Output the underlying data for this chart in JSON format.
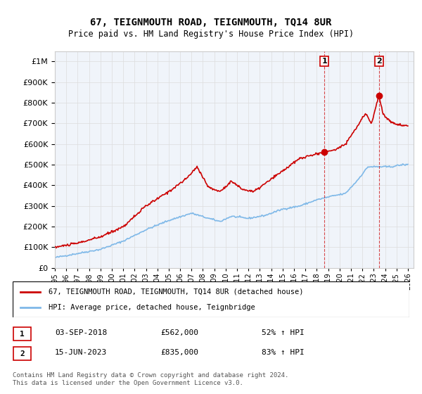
{
  "title": "67, TEIGNMOUTH ROAD, TEIGNMOUTH, TQ14 8UR",
  "subtitle": "Price paid vs. HM Land Registry's House Price Index (HPI)",
  "ylabel_ticks": [
    "£0",
    "£100K",
    "£200K",
    "£300K",
    "£400K",
    "£500K",
    "£600K",
    "£700K",
    "£800K",
    "£900K",
    "£1M"
  ],
  "ytick_values": [
    0,
    100000,
    200000,
    300000,
    400000,
    500000,
    600000,
    700000,
    800000,
    900000,
    1000000
  ],
  "ylim": [
    0,
    1050000
  ],
  "xlim_start": 1995.0,
  "xlim_end": 2026.5,
  "x_tick_years": [
    1995,
    1996,
    1997,
    1998,
    1999,
    2000,
    2001,
    2002,
    2003,
    2004,
    2005,
    2006,
    2007,
    2008,
    2009,
    2010,
    2011,
    2012,
    2013,
    2014,
    2015,
    2016,
    2017,
    2018,
    2019,
    2020,
    2021,
    2022,
    2023,
    2024,
    2025,
    2026
  ],
  "hpi_line_color": "#7eb8e8",
  "price_line_color": "#cc0000",
  "marker1_x": 2018.67,
  "marker1_y": 562000,
  "marker2_x": 2023.46,
  "marker2_y": 835000,
  "sale1_label": "1",
  "sale2_label": "2",
  "sale1_date": "03-SEP-2018",
  "sale1_price": "£562,000",
  "sale1_hpi": "52% ↑ HPI",
  "sale2_date": "15-JUN-2023",
  "sale2_price": "£835,000",
  "sale2_hpi": "83% ↑ HPI",
  "legend_line1": "67, TEIGNMOUTH ROAD, TEIGNMOUTH, TQ14 8UR (detached house)",
  "legend_line2": "HPI: Average price, detached house, Teignbridge",
  "footer": "Contains HM Land Registry data © Crown copyright and database right 2024.\nThis data is licensed under the Open Government Licence v3.0.",
  "background_color": "#ffffff",
  "grid_color": "#dddddd"
}
